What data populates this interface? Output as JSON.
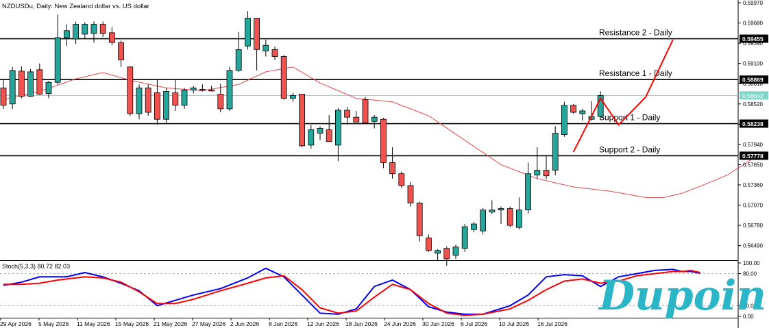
{
  "chart_data": [
    {
      "type": "candlestick",
      "title": "NZDUSDu, Daily:  New Zealand dollar vs. US dollar",
      "ylim": [
        0.563,
        0.5999
      ],
      "y_ticks": [
        "0.59970",
        "0.59680",
        "0.59390",
        "0.59100",
        "0.58810",
        "0.58520",
        "0.58230",
        "0.57940",
        "0.57650",
        "0.57360",
        "0.57070",
        "0.56780",
        "0.56490"
      ],
      "x_labels": [
        "29 Apr 2026",
        "5 May 2026",
        "11 May 2026",
        "15 May 2026",
        "21 May 2026",
        "27 May 2026",
        "2 Jun 2026",
        "8 Jun 2026",
        "12 Jun 2026",
        "18 Jun 2026",
        "24 Jun 2026",
        "30 Jun 2026",
        "6 Jul 2026",
        "10 Jul 2026",
        "16 Jul 2026"
      ],
      "candles": [
        {
          "o": 0.5875,
          "h": 0.5888,
          "l": 0.5845,
          "c": 0.585
        },
        {
          "o": 0.5852,
          "h": 0.5905,
          "l": 0.5845,
          "c": 0.59
        },
        {
          "o": 0.5899,
          "h": 0.5906,
          "l": 0.586,
          "c": 0.5863
        },
        {
          "o": 0.5863,
          "h": 0.5902,
          "l": 0.5862,
          "c": 0.5898
        },
        {
          "o": 0.5901,
          "h": 0.591,
          "l": 0.5865,
          "c": 0.5866
        },
        {
          "o": 0.5867,
          "h": 0.5885,
          "l": 0.586,
          "c": 0.5883
        },
        {
          "o": 0.5883,
          "h": 0.598,
          "l": 0.588,
          "c": 0.5947
        },
        {
          "o": 0.5947,
          "h": 0.5966,
          "l": 0.5935,
          "c": 0.5957
        },
        {
          "o": 0.5945,
          "h": 0.597,
          "l": 0.5938,
          "c": 0.5966
        },
        {
          "o": 0.5952,
          "h": 0.5969,
          "l": 0.5945,
          "c": 0.5966
        },
        {
          "o": 0.5953,
          "h": 0.597,
          "l": 0.594,
          "c": 0.5966
        },
        {
          "o": 0.5966,
          "h": 0.597,
          "l": 0.5948,
          "c": 0.5953
        },
        {
          "o": 0.5954,
          "h": 0.5962,
          "l": 0.5936,
          "c": 0.594
        },
        {
          "o": 0.594,
          "h": 0.5943,
          "l": 0.5905,
          "c": 0.5915
        },
        {
          "o": 0.5905,
          "h": 0.5906,
          "l": 0.5835,
          "c": 0.5838
        },
        {
          "o": 0.5838,
          "h": 0.588,
          "l": 0.583,
          "c": 0.5875
        },
        {
          "o": 0.5875,
          "h": 0.588,
          "l": 0.5835,
          "c": 0.584
        },
        {
          "o": 0.5868,
          "h": 0.5887,
          "l": 0.5822,
          "c": 0.583
        },
        {
          "o": 0.583,
          "h": 0.5875,
          "l": 0.5825,
          "c": 0.587
        },
        {
          "o": 0.5868,
          "h": 0.5887,
          "l": 0.5842,
          "c": 0.585
        },
        {
          "o": 0.585,
          "h": 0.5875,
          "l": 0.5845,
          "c": 0.5872
        },
        {
          "o": 0.5872,
          "h": 0.5878,
          "l": 0.5867,
          "c": 0.5875
        },
        {
          "o": 0.5873,
          "h": 0.588,
          "l": 0.587,
          "c": 0.5872
        },
        {
          "o": 0.5872,
          "h": 0.5878,
          "l": 0.587,
          "c": 0.5871
        },
        {
          "o": 0.5866,
          "h": 0.5881,
          "l": 0.584,
          "c": 0.5845
        },
        {
          "o": 0.5845,
          "h": 0.5905,
          "l": 0.5842,
          "c": 0.59
        },
        {
          "o": 0.59,
          "h": 0.5955,
          "l": 0.5898,
          "c": 0.593
        },
        {
          "o": 0.5935,
          "h": 0.5985,
          "l": 0.593,
          "c": 0.5975
        },
        {
          "o": 0.5975,
          "h": 0.5975,
          "l": 0.59,
          "c": 0.593
        },
        {
          "o": 0.5928,
          "h": 0.5944,
          "l": 0.592,
          "c": 0.5936
        },
        {
          "o": 0.593,
          "h": 0.5934,
          "l": 0.5915,
          "c": 0.592
        },
        {
          "o": 0.592,
          "h": 0.5922,
          "l": 0.5858,
          "c": 0.586
        },
        {
          "o": 0.586,
          "h": 0.5868,
          "l": 0.5855,
          "c": 0.5864
        },
        {
          "o": 0.5866,
          "h": 0.5866,
          "l": 0.579,
          "c": 0.5792
        },
        {
          "o": 0.5793,
          "h": 0.5822,
          "l": 0.5788,
          "c": 0.5815
        },
        {
          "o": 0.581,
          "h": 0.582,
          "l": 0.58,
          "c": 0.5817
        },
        {
          "o": 0.5815,
          "h": 0.5836,
          "l": 0.5798,
          "c": 0.5798
        },
        {
          "o": 0.5793,
          "h": 0.5846,
          "l": 0.577,
          "c": 0.5843
        },
        {
          "o": 0.5843,
          "h": 0.5848,
          "l": 0.5822,
          "c": 0.5833
        },
        {
          "o": 0.5833,
          "h": 0.5842,
          "l": 0.5826,
          "c": 0.5826
        },
        {
          "o": 0.5858,
          "h": 0.5862,
          "l": 0.5824,
          "c": 0.5825
        },
        {
          "o": 0.5827,
          "h": 0.5836,
          "l": 0.5817,
          "c": 0.5833
        },
        {
          "o": 0.583,
          "h": 0.5832,
          "l": 0.576,
          "c": 0.5768
        },
        {
          "o": 0.5768,
          "h": 0.579,
          "l": 0.5745,
          "c": 0.5752
        },
        {
          "o": 0.5752,
          "h": 0.5755,
          "l": 0.5732,
          "c": 0.5735
        },
        {
          "o": 0.5735,
          "h": 0.574,
          "l": 0.5705,
          "c": 0.571
        },
        {
          "o": 0.571,
          "h": 0.5712,
          "l": 0.5655,
          "c": 0.5663
        },
        {
          "o": 0.566,
          "h": 0.5665,
          "l": 0.564,
          "c": 0.5642
        },
        {
          "o": 0.5638,
          "h": 0.5644,
          "l": 0.5628,
          "c": 0.5642
        },
        {
          "o": 0.5645,
          "h": 0.5648,
          "l": 0.562,
          "c": 0.563
        },
        {
          "o": 0.5635,
          "h": 0.565,
          "l": 0.563,
          "c": 0.5647
        },
        {
          "o": 0.5645,
          "h": 0.568,
          "l": 0.564,
          "c": 0.5676
        },
        {
          "o": 0.5672,
          "h": 0.5683,
          "l": 0.5668,
          "c": 0.568
        },
        {
          "o": 0.567,
          "h": 0.5703,
          "l": 0.5665,
          "c": 0.57
        },
        {
          "o": 0.5697,
          "h": 0.5714,
          "l": 0.5694,
          "c": 0.57
        },
        {
          "o": 0.57,
          "h": 0.5705,
          "l": 0.568,
          "c": 0.5702
        },
        {
          "o": 0.5702,
          "h": 0.5705,
          "l": 0.5675,
          "c": 0.5678
        },
        {
          "o": 0.5675,
          "h": 0.5718,
          "l": 0.5672,
          "c": 0.57
        },
        {
          "o": 0.57,
          "h": 0.5768,
          "l": 0.5695,
          "c": 0.5752
        },
        {
          "o": 0.575,
          "h": 0.579,
          "l": 0.5745,
          "c": 0.5757
        },
        {
          "o": 0.5757,
          "h": 0.5778,
          "l": 0.5744,
          "c": 0.5749
        },
        {
          "o": 0.5757,
          "h": 0.582,
          "l": 0.575,
          "c": 0.581
        },
        {
          "o": 0.5808,
          "h": 0.5855,
          "l": 0.5805,
          "c": 0.585
        },
        {
          "o": 0.585,
          "h": 0.5852,
          "l": 0.5838,
          "c": 0.584
        },
        {
          "o": 0.5838,
          "h": 0.5845,
          "l": 0.5828,
          "c": 0.5842
        },
        {
          "o": 0.583,
          "h": 0.5856,
          "l": 0.5828,
          "c": 0.5834
        },
        {
          "o": 0.5834,
          "h": 0.587,
          "l": 0.5831,
          "c": 0.5864
        }
      ],
      "moving_average": [
        [
          0,
          0.5858
        ],
        [
          4,
          0.587
        ],
        [
          8,
          0.5888
        ],
        [
          11,
          0.5897
        ],
        [
          14,
          0.5886
        ],
        [
          18,
          0.5875
        ],
        [
          22,
          0.5871
        ],
        [
          26,
          0.588
        ],
        [
          29,
          0.5898
        ],
        [
          32,
          0.5905
        ],
        [
          35,
          0.5882
        ],
        [
          39,
          0.586
        ],
        [
          43,
          0.5855
        ],
        [
          47,
          0.5835
        ],
        [
          51,
          0.58
        ],
        [
          55,
          0.5765
        ],
        [
          59,
          0.5745
        ],
        [
          63,
          0.5733
        ],
        [
          67,
          0.5727
        ],
        [
          71,
          0.5718
        ],
        [
          73,
          0.5718
        ],
        [
          75,
          0.5724
        ],
        [
          77,
          0.5734
        ],
        [
          80,
          0.575
        ],
        [
          83,
          0.5775
        ]
      ],
      "moving_average_color": "#e8474b",
      "horizontal_levels": [
        {
          "label": "Resistance 2 - Daily",
          "value": 0.59455,
          "tag": "0.59455"
        },
        {
          "label": "Resistance 1 - Daily",
          "value": 0.58869,
          "tag": "0.58869"
        },
        {
          "label": "Support 1 - Daily",
          "value": 0.58238,
          "tag": "0.58238"
        },
        {
          "label": "Support 2 - Daily",
          "value": 0.57778,
          "tag": "0.57778"
        }
      ],
      "current_price": {
        "value": 0.58642,
        "tag": "0.58642"
      },
      "trend_path": [
        [
          63,
          0.5783
        ],
        [
          66,
          0.586
        ],
        [
          68,
          0.5822
        ],
        [
          71,
          0.5862
        ],
        [
          74,
          0.5944
        ]
      ],
      "trend_path_color": "#ff0000",
      "bull_color": "#26a69a",
      "bear_color": "#ef5350"
    },
    {
      "type": "line",
      "title": "Stoch(5,3,3) 80.72 82.03",
      "ylim": [
        0,
        100
      ],
      "y_ticks": [
        "100.00",
        "80.00",
        "20.00",
        "0.00"
      ],
      "levels": [
        80,
        20
      ],
      "series": [
        {
          "color": "#0000ff",
          "points": [
            [
              0,
              58
            ],
            [
              2,
              64
            ],
            [
              4,
              74
            ],
            [
              7,
              74
            ],
            [
              9,
              82
            ],
            [
              11,
              74
            ],
            [
              13,
              62
            ],
            [
              15,
              48
            ],
            [
              17,
              20
            ],
            [
              19,
              30
            ],
            [
              21,
              40
            ],
            [
              24,
              52
            ],
            [
              27,
              72
            ],
            [
              29,
              90
            ],
            [
              31,
              74
            ],
            [
              33,
              40
            ],
            [
              35,
              6
            ],
            [
              37,
              4
            ],
            [
              39,
              14
            ],
            [
              41,
              56
            ],
            [
              43,
              68
            ],
            [
              45,
              50
            ],
            [
              47,
              18
            ],
            [
              49,
              8
            ],
            [
              51,
              4
            ],
            [
              53,
              4
            ],
            [
              56,
              20
            ],
            [
              58,
              40
            ],
            [
              60,
              74
            ],
            [
              62,
              78
            ],
            [
              64,
              76
            ],
            [
              66,
              56
            ],
            [
              68,
              74
            ],
            [
              70,
              80
            ],
            [
              72,
              86
            ],
            [
              74,
              88
            ],
            [
              75,
              84
            ],
            [
              76,
              84
            ],
            [
              77,
              80.72
            ]
          ]
        },
        {
          "color": "#ff0000",
          "points": [
            [
              0,
              60
            ],
            [
              2,
              60
            ],
            [
              4,
              62
            ],
            [
              6,
              68
            ],
            [
              9,
              74
            ],
            [
              11,
              72
            ],
            [
              13,
              64
            ],
            [
              15,
              46
            ],
            [
              17,
              24
            ],
            [
              19,
              24
            ],
            [
              21,
              32
            ],
            [
              24,
              48
            ],
            [
              27,
              62
            ],
            [
              29,
              72
            ],
            [
              31,
              76
            ],
            [
              33,
              50
            ],
            [
              35,
              16
            ],
            [
              37,
              6
            ],
            [
              39,
              10
            ],
            [
              41,
              36
            ],
            [
              43,
              60
            ],
            [
              45,
              50
            ],
            [
              47,
              24
            ],
            [
              49,
              6
            ],
            [
              51,
              2
            ],
            [
              53,
              4
            ],
            [
              56,
              14
            ],
            [
              58,
              30
            ],
            [
              60,
              50
            ],
            [
              62,
              66
            ],
            [
              64,
              70
            ],
            [
              66,
              62
            ],
            [
              68,
              66
            ],
            [
              70,
              76
            ],
            [
              72,
              80
            ],
            [
              74,
              84
            ],
            [
              75,
              84
            ],
            [
              76,
              86
            ],
            [
              77,
              82.03
            ]
          ]
        }
      ],
      "x_labels": [
        "29 Apr 2026",
        "5 May 2026",
        "11 May 2026",
        "15 May 2026",
        "21 May 2026",
        "27 May 2026",
        "2 Jun 2026",
        "8 Jun 2026",
        "12 Jun 2026",
        "18 Jun 2026",
        "24 Jun 2026",
        "30 Jun 2026",
        "6 Jul 2026",
        "10 Jul 2026",
        "16 Jul 2026"
      ]
    }
  ],
  "watermark": {
    "text": "Dupoin",
    "color": "#2bb6c7"
  }
}
